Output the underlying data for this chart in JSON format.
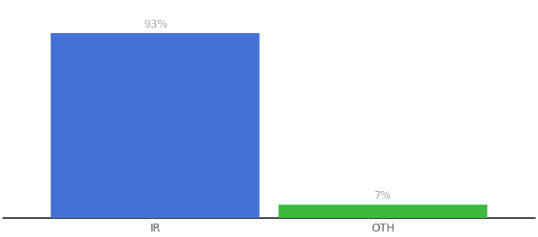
{
  "categories": [
    "IR",
    "OTH"
  ],
  "values": [
    93,
    7
  ],
  "bar_colors": [
    "#4472d4",
    "#3dba3d"
  ],
  "label_texts": [
    "93%",
    "7%"
  ],
  "background_color": "#ffffff",
  "text_color": "#aaaaaa",
  "label_fontsize": 10,
  "tick_fontsize": 10,
  "bar_width": 0.55,
  "x_positions": [
    0.3,
    0.9
  ],
  "xlim": [
    -0.1,
    1.3
  ],
  "ylim": [
    0,
    108
  ],
  "spine_color": "#111111"
}
